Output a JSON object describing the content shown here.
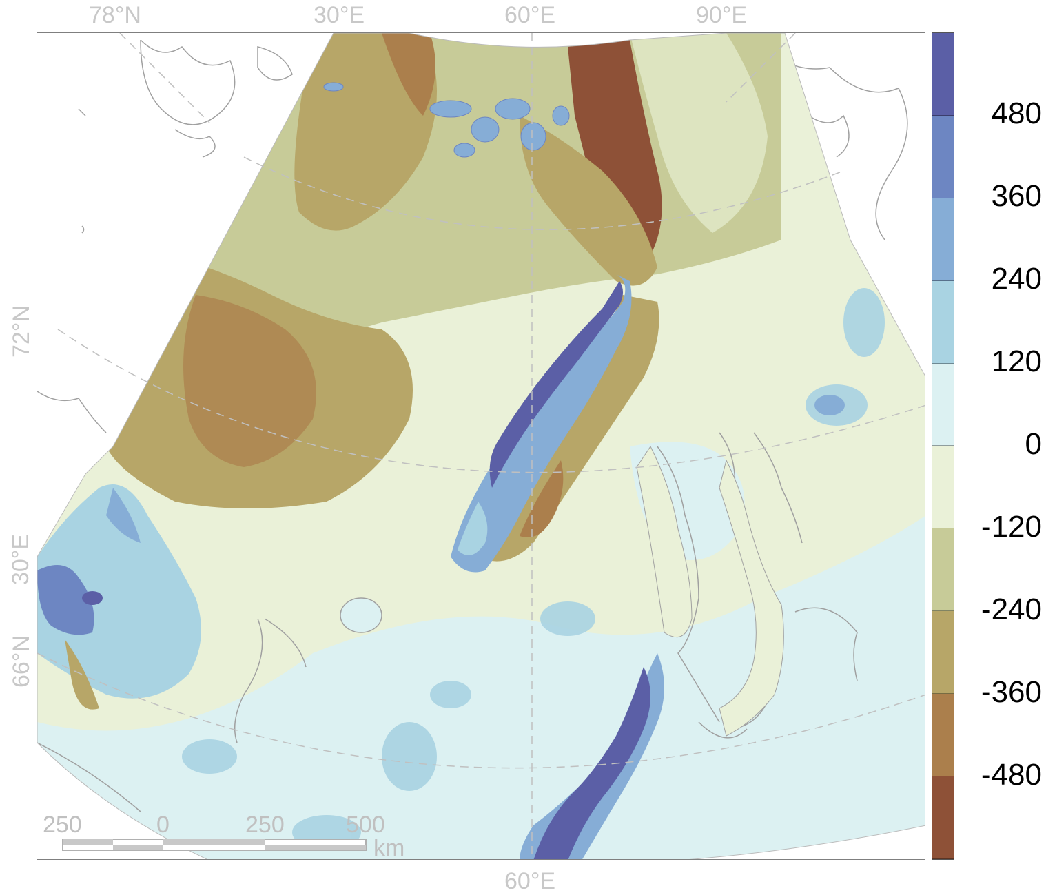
{
  "axes": {
    "top_labels": [
      "78°N",
      "30°E",
      "60°E",
      "90°E"
    ],
    "bottom_labels": [
      "60°E"
    ],
    "left_labels": [
      "72°N",
      "30°E",
      "66°N"
    ]
  },
  "colorbar": {
    "ticks": [
      "480",
      "360",
      "240",
      "120",
      "0",
      "-120",
      "-240",
      "-360",
      "-480"
    ],
    "colors": [
      "#5b5fa6",
      "#6d86c2",
      "#86add6",
      "#a9d3e2",
      "#dcf1f2",
      "#eaf1d8",
      "#c7cb98",
      "#b7a668",
      "#ab7f4c",
      "#8e5137"
    ]
  },
  "scalebar": {
    "ticks": [
      "250",
      "0",
      "250",
      "500"
    ],
    "unit": "km"
  },
  "map": {
    "land_high_color": "#5b5fa6",
    "ocean_shallow_color": "#eaf1d8",
    "ocean_deep_color": "#8e5137",
    "coastline_color": "#a0a0a0",
    "graticule_color": "#c0c0c0"
  }
}
